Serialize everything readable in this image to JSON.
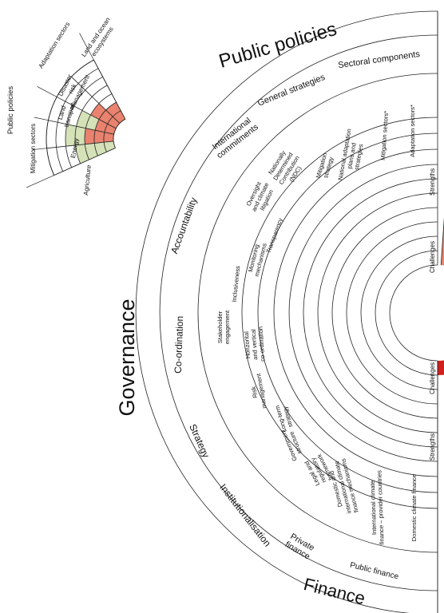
{
  "colors": {
    "strength": "#9fbb6b",
    "strength_light": "#d5e1b7",
    "challenge": "#e9826e",
    "challenge_strong": "#d0201c",
    "line": "#222222"
  },
  "main": {
    "governance": "Governance",
    "public_policies": "Public policies",
    "finance": "Finance"
  },
  "sub": {
    "general_strategies": "General strategies",
    "sectoral_components": "Sectoral components",
    "international_commitments": "International commitments",
    "accountability": "Accountability",
    "coordination": "Co-ordination",
    "strategy": "Strategy",
    "institutionalisation": "Institutionalisation",
    "private_finance": "Private finance",
    "public_finance": "Public finance"
  },
  "items": {
    "ndc": "Nationally Determined Contribution (NDC)",
    "mitigation_strategy": "Mitigation strategy",
    "nap": "National adaptation plans and strategies",
    "mitigation_sectors": "Mitigation sectors*",
    "adaptation_sectors": "Adaptation sectors*",
    "oversight": "Oversight and climate litigation",
    "transparency": "Transparency",
    "monitoring": "Monitoring mechanisms",
    "inclusiveness": "Inclusiveness",
    "stakeholder": "Stakeholder engagement",
    "horizontal": "Horizontal and vertical co-ordination",
    "risk": "Risk management",
    "long_term": "Long-term strategy",
    "gov_structure": "Government structure",
    "legal": "Legal and regulatory framework",
    "domestic_intl": "Domestic and international climate finance mechanisms",
    "intl_finance": "International climate finance – provider countries",
    "domestic_finance": "Domestic climate finance"
  },
  "axis": {
    "strengths": "Strengths",
    "challenges": "Challenges"
  },
  "inset": {
    "public_policies": "Public policies",
    "adaptation_sectors": "Adaptation sectors",
    "mitigation_sectors": "Mitigation sectors",
    "agriculture": "Agriculture",
    "energy": "Energy",
    "land_transport": "Land transport",
    "disaster_risk": "Disaster risk management",
    "land_ocean": "Land and ocean ecosystems"
  }
}
